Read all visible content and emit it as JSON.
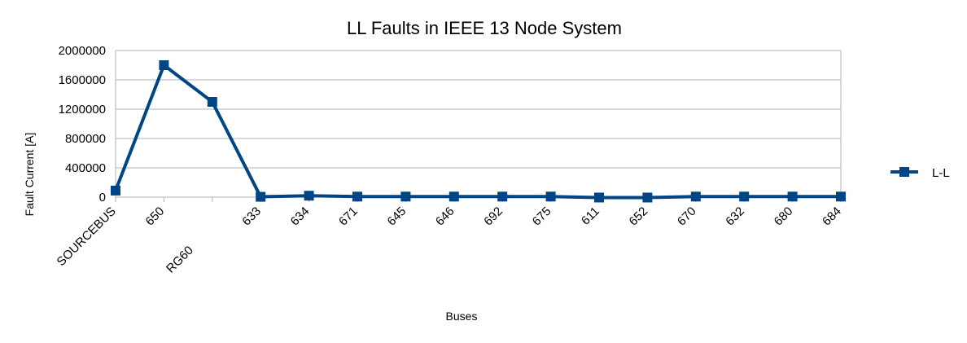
{
  "chart_data": {
    "type": "line",
    "title": "LL Faults in IEEE 13 Node System",
    "xlabel": "Buses",
    "ylabel": "Fault Current [A]",
    "categories": [
      "SOURCEBUS",
      "650",
      "RG60",
      "633",
      "634",
      "671",
      "645",
      "646",
      "692",
      "675",
      "611",
      "652",
      "670",
      "632",
      "680",
      "684"
    ],
    "series": [
      {
        "name": "L-L",
        "color": "#004586",
        "values": [
          90000,
          1800000,
          1300000,
          5000,
          20000,
          8000,
          8000,
          8000,
          8000,
          8000,
          -5000,
          -5000,
          8000,
          8000,
          8000,
          8000
        ]
      }
    ],
    "ylim": [
      0,
      2000000
    ],
    "yticks": [
      0,
      400000,
      800000,
      1200000,
      1600000,
      2000000
    ],
    "grid": true,
    "legend_position": "right"
  }
}
